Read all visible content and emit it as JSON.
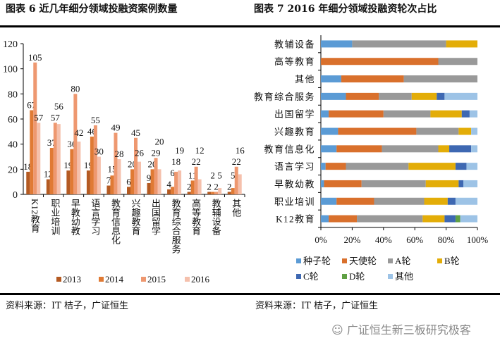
{
  "left": {
    "title": "图表 6 近几年细分领域投融资案例数量",
    "source": "资料来源：IT 桔子，广证恒生"
  },
  "right": {
    "title": "图表 7 2016 年细分领域投融资轮次占比",
    "source": "资料来源：IT 桔子，广证恒生"
  },
  "watermark": "广证恒生新三板研究极客",
  "chart_data": [
    {
      "type": "bar",
      "categories": [
        "K12教育",
        "职业培训",
        "早教幼教",
        "语言学习",
        "教育信息化",
        "兴趣教育",
        "出国留学",
        "教育综合服务",
        "高等教育",
        "教辅设备",
        "其他"
      ],
      "series": [
        {
          "name": "2013",
          "color": "#B45A22",
          "values": [
            18,
            12,
            19,
            19,
            7,
            6,
            9,
            4,
            2,
            2,
            2
          ]
        },
        {
          "name": "2014",
          "color": "#E07A34",
          "values": [
            67,
            37,
            36,
            46,
            15,
            20,
            20,
            6,
            11,
            2,
            5
          ]
        },
        {
          "name": "2015",
          "color": "#EE9870",
          "values": [
            105,
            57,
            80,
            55,
            49,
            45,
            29,
            18,
            22,
            2,
            22
          ]
        },
        {
          "name": "2016",
          "color": "#F5C0AC",
          "values": [
            57,
            56,
            42,
            30,
            28,
            26,
            20,
            19,
            12,
            5,
            16
          ]
        }
      ],
      "ylim": [
        0,
        120
      ],
      "yticks": [
        0,
        20,
        40,
        60,
        80,
        100,
        120
      ],
      "legend": "bottom",
      "grid": false
    },
    {
      "type": "bar",
      "stacked": "percent",
      "orientation": "horizontal",
      "categories": [
        "教辅设备",
        "高等教育",
        "其他",
        "教育综合服务",
        "出国留学",
        "兴趣教育",
        "教育信息化",
        "语言学习",
        "早教幼教",
        "职业培训",
        "K12教育"
      ],
      "series": [
        {
          "name": "种子轮",
          "color": "#5B9BD5",
          "values": [
            20,
            0,
            13,
            16,
            5,
            11,
            10,
            3,
            2,
            10,
            5
          ]
        },
        {
          "name": "天使轮",
          "color": "#D9702C",
          "values": [
            0,
            75,
            40,
            21,
            35,
            50,
            29,
            13,
            24,
            24,
            18
          ]
        },
        {
          "name": "A轮",
          "color": "#999999",
          "values": [
            60,
            25,
            47,
            21,
            30,
            27,
            36,
            40,
            41,
            32,
            42
          ]
        },
        {
          "name": "B轮",
          "color": "#E3AD08",
          "values": [
            20,
            0,
            0,
            16,
            20,
            8,
            7,
            30,
            21,
            15,
            14
          ]
        },
        {
          "name": "C轮",
          "color": "#3E68B2",
          "values": [
            0,
            0,
            0,
            5,
            5,
            0,
            14,
            7,
            3,
            5,
            7
          ]
        },
        {
          "name": "D轮",
          "color": "#5FA044",
          "values": [
            0,
            0,
            0,
            0,
            0,
            0,
            0,
            0,
            0,
            0,
            3
          ]
        },
        {
          "name": "其他",
          "color": "#9DC3E6",
          "values": [
            0,
            0,
            0,
            21,
            5,
            4,
            4,
            7,
            9,
            14,
            11
          ]
        }
      ],
      "xlim": [
        0,
        100
      ],
      "xticks": [
        "0%",
        "20%",
        "40%",
        "60%",
        "80%",
        "100%"
      ],
      "legend": "bottom",
      "grid": false
    }
  ]
}
